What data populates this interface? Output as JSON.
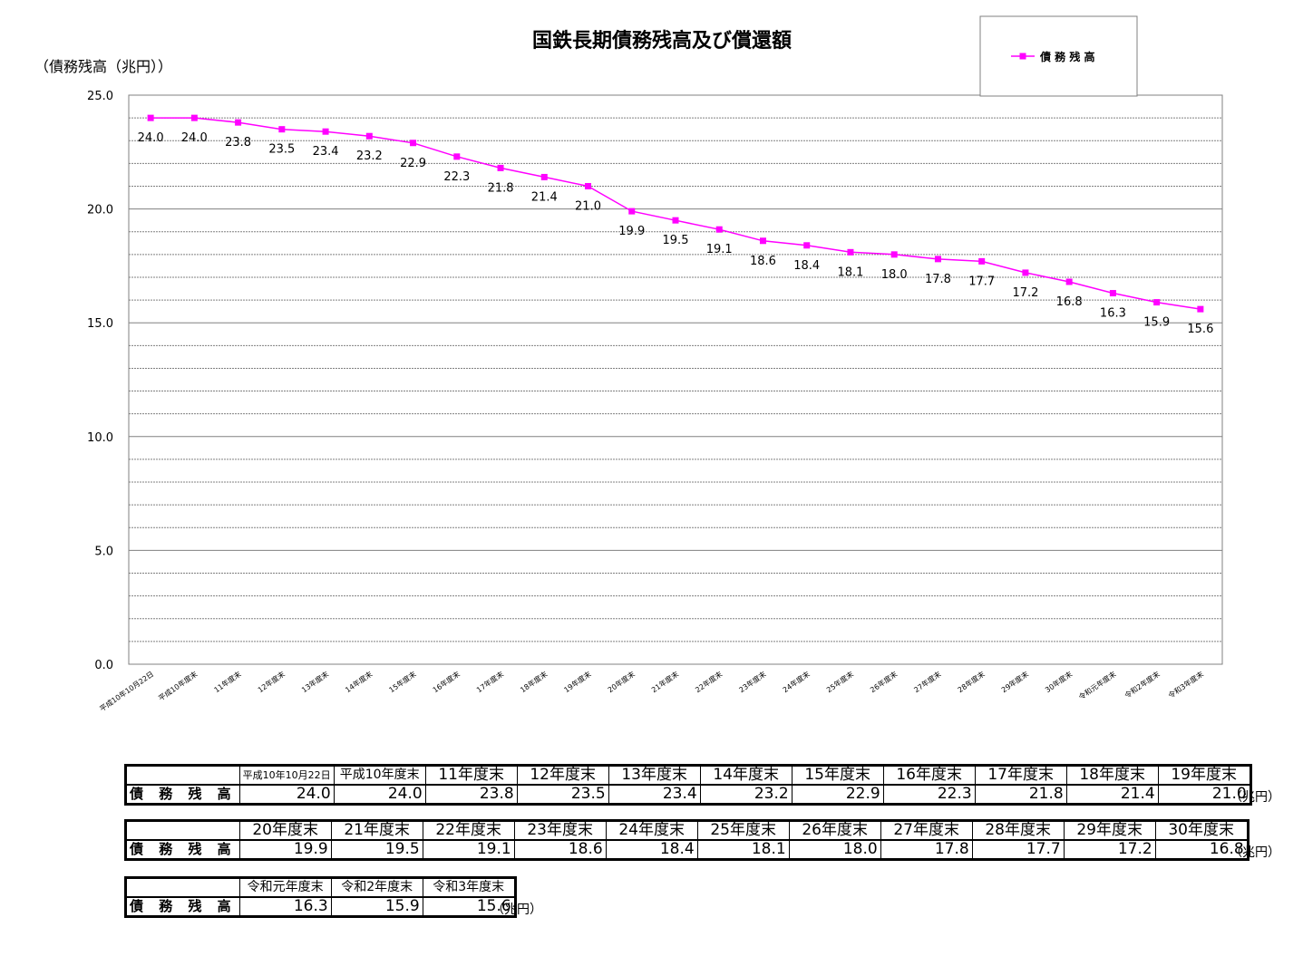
{
  "chart_data": {
    "type": "line",
    "title": "国鉄長期債務残高及び償還額",
    "ylabel": "（債務残高（兆円））",
    "ylim": [
      0,
      25
    ],
    "yticks": [
      "0.0",
      "5.0",
      "10.0",
      "15.0",
      "20.0",
      "25.0"
    ],
    "grid": true,
    "legend_position": "top-right",
    "categories": [
      "平成10年10月22日",
      "平成10年度末",
      "11年度末",
      "12年度末",
      "13年度末",
      "14年度末",
      "15年度末",
      "16年度末",
      "17年度末",
      "18年度末",
      "19年度末",
      "20年度末",
      "21年度末",
      "22年度末",
      "23年度末",
      "24年度末",
      "25年度末",
      "26年度末",
      "27年度末",
      "28年度末",
      "29年度末",
      "30年度末",
      "令和元年度末",
      "令和2年度末",
      "令和3年度末"
    ],
    "series": [
      {
        "name": "債 務 残 高",
        "color": "#ff00ff",
        "values": [
          24.0,
          24.0,
          23.8,
          23.5,
          23.4,
          23.2,
          22.9,
          22.3,
          21.8,
          21.4,
          21.0,
          19.9,
          19.5,
          19.1,
          18.6,
          18.4,
          18.1,
          18.0,
          17.8,
          17.7,
          17.2,
          16.8,
          16.3,
          15.9,
          15.6
        ],
        "labels": [
          "24.0",
          "24.0",
          "23.8",
          "23.5",
          "23.4",
          "23.2",
          "22.9",
          "22.3",
          "21.8",
          "21.4",
          "21.0",
          "19.9",
          "19.5",
          "19.1",
          "18.6",
          "18.4",
          "18.1",
          "18.0",
          "17.8",
          "17.7",
          "17.2",
          "16.8",
          "16.3",
          "15.9",
          "15.6"
        ]
      }
    ]
  },
  "tables": {
    "row_label": "債 務 残 高",
    "unit": "（兆円）",
    "table1": {
      "headers": [
        "平成10年10月22日",
        "平成10年度末",
        "11年度末",
        "12年度末",
        "13年度末",
        "14年度末",
        "15年度末",
        "16年度末",
        "17年度末",
        "18年度末",
        "19年度末"
      ],
      "values": [
        "24.0",
        "24.0",
        "23.8",
        "23.5",
        "23.4",
        "23.2",
        "22.9",
        "22.3",
        "21.8",
        "21.4",
        "21.0"
      ]
    },
    "table2": {
      "headers": [
        "20年度末",
        "21年度末",
        "22年度末",
        "23年度末",
        "24年度末",
        "25年度末",
        "26年度末",
        "27年度末",
        "28年度末",
        "29年度末",
        "30年度末"
      ],
      "values": [
        "19.9",
        "19.5",
        "19.1",
        "18.6",
        "18.4",
        "18.1",
        "18.0",
        "17.8",
        "17.7",
        "17.2",
        "16.8"
      ]
    },
    "table3": {
      "headers": [
        "令和元年度末",
        "令和2年度末",
        "令和3年度末"
      ],
      "values": [
        "16.3",
        "15.9",
        "15.6"
      ]
    }
  }
}
